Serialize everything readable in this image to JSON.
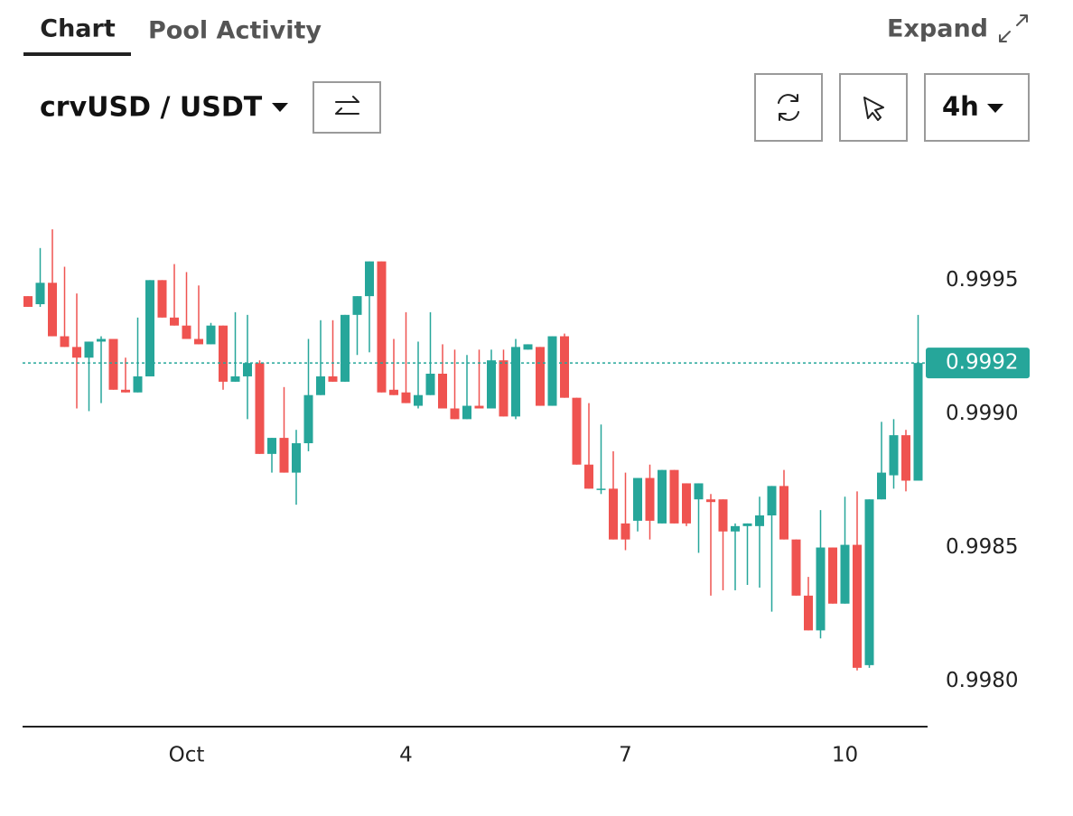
{
  "ui": {
    "tabs": [
      "Chart",
      "Pool Activity"
    ],
    "expand": "Expand",
    "pair": "crvUSD / USDT",
    "interval": "4h"
  },
  "chart_data": {
    "type": "candlestick",
    "categories": [
      null,
      null,
      null,
      null,
      null,
      null,
      null,
      null,
      null,
      null,
      null,
      null,
      null,
      "Oct",
      null,
      null,
      null,
      null,
      null,
      null,
      null,
      null,
      null,
      null,
      null,
      null,
      null,
      null,
      null,
      null,
      null,
      "4",
      null,
      null,
      null,
      null,
      null,
      null,
      null,
      null,
      null,
      null,
      null,
      null,
      null,
      null,
      null,
      null,
      null,
      "7",
      null,
      null,
      null,
      null,
      null,
      null,
      null,
      null,
      null,
      null,
      null,
      null,
      null,
      null,
      null,
      null,
      null,
      "10",
      null,
      null,
      null,
      null,
      null,
      null
    ],
    "open": [
      0.99944,
      0.99941,
      0.99949,
      0.99929,
      0.99925,
      0.99921,
      0.99927,
      0.99928,
      0.99909,
      0.99908,
      0.99914,
      0.9995,
      0.99936,
      0.99933,
      0.99928,
      0.99926,
      0.99933,
      0.99912,
      0.99914,
      0.99919,
      0.99885,
      0.99891,
      0.99878,
      0.99889,
      0.99907,
      0.99914,
      0.99912,
      0.99937,
      0.99944,
      0.99957,
      0.99909,
      0.99908,
      0.99903,
      0.99907,
      0.99915,
      0.99902,
      0.99898,
      0.99903,
      0.99902,
      0.9992,
      0.99899,
      0.99924,
      0.99925,
      0.99903,
      0.99929,
      0.99906,
      0.99881,
      0.99872,
      0.99872,
      0.99859,
      0.9986,
      0.99876,
      0.99859,
      0.99879,
      0.99874,
      0.99868,
      0.99868,
      0.99868,
      0.99856,
      0.99858,
      0.99858,
      0.99862,
      0.99873,
      0.99853,
      0.99832,
      0.99819,
      0.9985,
      0.99829,
      0.99851,
      0.99806,
      0.99868,
      0.99877,
      0.99892,
      0.99875
    ],
    "high": [
      0.99944,
      0.99962,
      0.99969,
      0.99955,
      0.99945,
      0.99927,
      0.99929,
      0.99928,
      0.99921,
      0.99936,
      0.9995,
      0.9995,
      0.99956,
      0.99953,
      0.99948,
      0.99934,
      0.99933,
      0.99938,
      0.99937,
      0.9992,
      0.99891,
      0.9991,
      0.99894,
      0.99928,
      0.99935,
      0.99935,
      0.99937,
      0.99944,
      0.99957,
      0.99957,
      0.99928,
      0.99938,
      0.99927,
      0.99938,
      0.99926,
      0.99924,
      0.99922,
      0.99924,
      0.99924,
      0.99924,
      0.99928,
      0.99926,
      0.99925,
      0.99929,
      0.9993,
      0.99906,
      0.99904,
      0.99896,
      0.99886,
      0.99878,
      0.99876,
      0.99881,
      0.99879,
      0.99879,
      0.99874,
      0.99874,
      0.9987,
      0.99868,
      0.99859,
      0.99859,
      0.99869,
      0.99873,
      0.99879,
      0.99853,
      0.99839,
      0.99864,
      0.9985,
      0.99869,
      0.99871,
      0.99868,
      0.99897,
      0.99898,
      0.99894,
      0.99937
    ],
    "low": [
      0.9994,
      0.9994,
      0.99929,
      0.99925,
      0.99902,
      0.99901,
      0.99904,
      0.99909,
      0.99908,
      0.99908,
      0.99914,
      0.99936,
      0.99933,
      0.99928,
      0.99926,
      0.99926,
      0.99909,
      0.99912,
      0.99898,
      0.99885,
      0.99878,
      0.99878,
      0.99866,
      0.99886,
      0.99907,
      0.99912,
      0.99912,
      0.99922,
      0.99923,
      0.99908,
      0.99907,
      0.99904,
      0.99902,
      0.99907,
      0.99902,
      0.99898,
      0.99898,
      0.99902,
      0.99902,
      0.99899,
      0.99898,
      0.99924,
      0.99903,
      0.99903,
      0.99906,
      0.99881,
      0.99872,
      0.9987,
      0.99853,
      0.99849,
      0.99856,
      0.99853,
      0.99859,
      0.99859,
      0.99858,
      0.99848,
      0.99832,
      0.99834,
      0.99834,
      0.99836,
      0.99835,
      0.99826,
      0.99853,
      0.99832,
      0.99819,
      0.99816,
      0.99829,
      0.99829,
      0.99804,
      0.99805,
      0.99868,
      0.99872,
      0.99871,
      0.99875
    ],
    "close": [
      0.9994,
      0.99949,
      0.99929,
      0.99925,
      0.99921,
      0.99927,
      0.99928,
      0.99909,
      0.99908,
      0.99914,
      0.9995,
      0.99936,
      0.99933,
      0.99928,
      0.99926,
      0.99933,
      0.99912,
      0.99914,
      0.99919,
      0.99885,
      0.99891,
      0.99878,
      0.99889,
      0.99907,
      0.99914,
      0.99912,
      0.99937,
      0.99944,
      0.99957,
      0.99908,
      0.99907,
      0.99904,
      0.99907,
      0.99915,
      0.99902,
      0.99898,
      0.99903,
      0.99902,
      0.9992,
      0.99899,
      0.99925,
      0.99926,
      0.99903,
      0.99929,
      0.99906,
      0.99881,
      0.99872,
      0.99872,
      0.99853,
      0.99853,
      0.99876,
      0.9986,
      0.99879,
      0.99859,
      0.99859,
      0.99874,
      0.99867,
      0.99856,
      0.99858,
      0.99859,
      0.99862,
      0.99873,
      0.99853,
      0.99832,
      0.99819,
      0.9985,
      0.99829,
      0.99851,
      0.99805,
      0.99868,
      0.99878,
      0.99892,
      0.99875,
      0.99919
    ],
    "up_color": "#26a69a",
    "down_color": "#ef5350",
    "ylim": [
      0.99783,
      0.99994
    ],
    "yticks": [
      {
        "value": 0.998,
        "label": "0.9980"
      },
      0.9985,
      {
        "value": 0.999,
        "label": "0.9990"
      },
      0.9995
    ],
    "last_price": {
      "value": 0.99919,
      "label": "0.9992"
    }
  }
}
